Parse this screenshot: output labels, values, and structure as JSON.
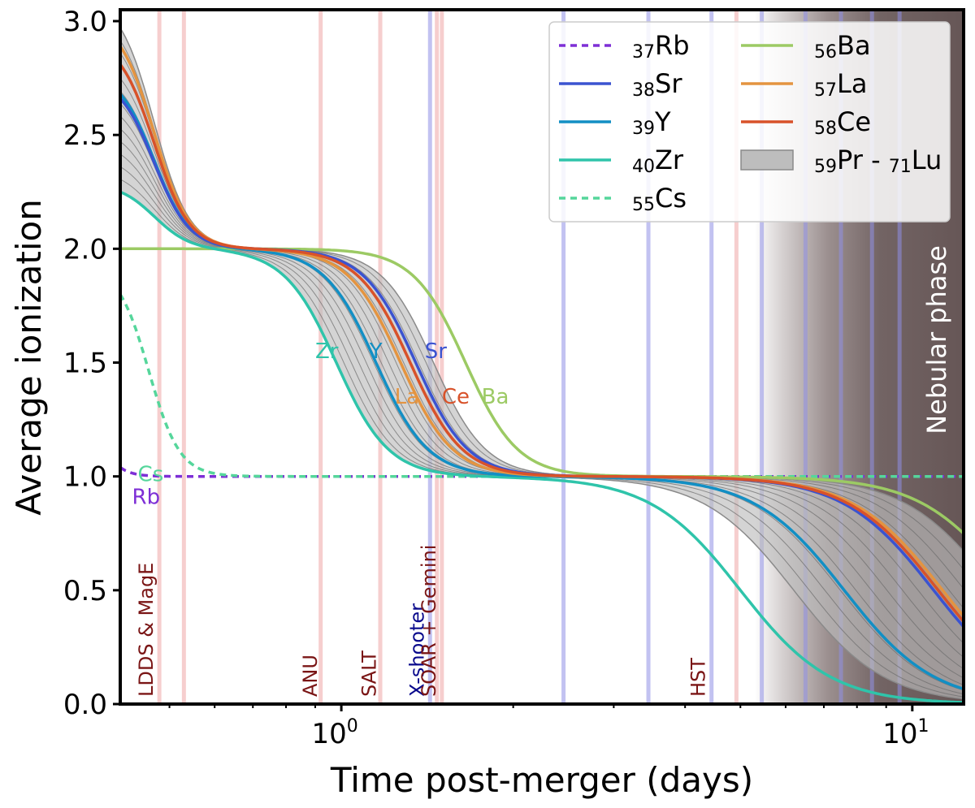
{
  "chart_data": {
    "type": "line",
    "xlabel": "Time post-merger (days)",
    "ylabel": "Average ionization",
    "xscale": "log",
    "xlim": [
      0.41,
      12.3
    ],
    "ylim": [
      0.0,
      3.05
    ],
    "x_ticks": [
      {
        "value": 1,
        "base": "10",
        "exp": "0"
      },
      {
        "value": 10,
        "base": "10",
        "exp": "1"
      }
    ],
    "y_ticks": [
      "0.0",
      "0.5",
      "1.0",
      "1.5",
      "2.0",
      "2.5",
      "3.0"
    ],
    "grid": false,
    "legend": {
      "placement": "top-right",
      "entries": [
        {
          "sub": "37",
          "label": "Rb",
          "color": "#7e2fd6",
          "style": "dashed"
        },
        {
          "sub": "38",
          "label": "Sr",
          "color": "#3b53d0",
          "style": "solid"
        },
        {
          "sub": "39",
          "label": "Y",
          "color": "#128fc4",
          "style": "solid"
        },
        {
          "sub": "40",
          "label": "Zr",
          "color": "#2fc4aa",
          "style": "solid"
        },
        {
          "sub": "55",
          "label": "Cs",
          "color": "#55d69b",
          "style": "dashed"
        },
        {
          "sub": "56",
          "label": "Ba",
          "color": "#9cca64",
          "style": "solid"
        },
        {
          "sub": "57",
          "label": "La",
          "color": "#e49440",
          "style": "solid"
        },
        {
          "sub": "58",
          "label": "Ce",
          "color": "#d8522a",
          "style": "solid"
        },
        {
          "sub": "59",
          "label": "Pr - ",
          "sub2": "71",
          "label2": "Lu",
          "color": "#b0b0b0",
          "style": "band"
        }
      ]
    },
    "series": [
      {
        "name": "Rb",
        "color": "#7e2fd6",
        "style": "dashed",
        "early_start": 1.04,
        "early_decay": 0.47,
        "plateau": 1.0
      },
      {
        "name": "Cs",
        "color": "#55d69b",
        "style": "dashed",
        "early_start": 1.8,
        "early_mid": 0.46,
        "plateau": 1.0
      },
      {
        "name": "Ba",
        "color": "#9cca64",
        "style": "solid",
        "early_start": 2.0,
        "t_2to1": 1.65,
        "t_1to0": 15.0
      },
      {
        "name": "Zr",
        "color": "#2fc4aa",
        "style": "solid",
        "early_start": 2.25,
        "t_2to1": 0.98,
        "t_1to0": 5.0
      },
      {
        "name": "Y",
        "color": "#128fc4",
        "style": "solid",
        "early_start": 2.68,
        "t_2to1": 1.15,
        "t_1to0": 7.6
      },
      {
        "name": "Sr",
        "color": "#3b53d0",
        "style": "solid",
        "early_start": 2.66,
        "t_2to1": 1.35,
        "t_1to0": 10.9
      },
      {
        "name": "La",
        "color": "#e49440",
        "style": "solid",
        "early_start": 2.89,
        "t_2to1": 1.27,
        "t_1to0": 11.3
      },
      {
        "name": "Ce",
        "color": "#d8522a",
        "style": "solid",
        "early_start": 2.81,
        "t_2to1": 1.32,
        "t_1to0": 11.1
      }
    ],
    "band": {
      "name": "Pr - Lu",
      "upper_start": 2.97,
      "lower_start": 2.25,
      "upper_t_2to1": 1.45,
      "lower_t_2to1": 0.98,
      "upper_t_1to0": 14.0,
      "lower_t_1to0": 6.2
    },
    "observations": [
      {
        "label": "LDDS & MagE",
        "t": 0.48,
        "color": "#7a1515",
        "lines": [
          0.48,
          0.53
        ]
      },
      {
        "label": "ANU",
        "t": 0.93,
        "color": "#7a1515",
        "lines": [
          0.92
        ]
      },
      {
        "label": "SALT",
        "t": 1.18,
        "color": "#7a1515",
        "lines": [
          1.17
        ]
      },
      {
        "label": "X-shooter",
        "t": 1.43,
        "color": "#0a0a8c",
        "lines": [
          1.43,
          2.45,
          3.45,
          4.45,
          5.45,
          6.5,
          7.5,
          8.5,
          9.5
        ]
      },
      {
        "label": "SOAR + Gemini",
        "t": 1.5,
        "color": "#7a1515",
        "lines": [
          1.47,
          1.5
        ]
      },
      {
        "label": "HST",
        "t": 4.45,
        "color": "#7a1515",
        "lines": [
          4.92
        ]
      }
    ],
    "curve_labels": [
      {
        "text": "Zr",
        "x": 0.9,
        "y": 1.52,
        "color": "#2fc4aa"
      },
      {
        "text": "Y",
        "x": 1.12,
        "y": 1.52,
        "color": "#128fc4"
      },
      {
        "text": "Sr",
        "x": 1.4,
        "y": 1.52,
        "color": "#3b53d0"
      },
      {
        "text": "La",
        "x": 1.24,
        "y": 1.32,
        "color": "#e49440"
      },
      {
        "text": "Ce",
        "x": 1.5,
        "y": 1.32,
        "color": "#d8522a"
      },
      {
        "text": "Ba",
        "x": 1.76,
        "y": 1.32,
        "color": "#9cca64"
      },
      {
        "text": "Cs",
        "x": 0.44,
        "y": 0.98,
        "color": "#55d69b"
      },
      {
        "text": "Rb",
        "x": 0.43,
        "y": 0.88,
        "color": "#7e2fd6"
      }
    ],
    "annotations": [
      {
        "text": "Nebular phase",
        "x": 11.0,
        "y": 1.6,
        "color": "#ffffff",
        "rotation": -90
      }
    ],
    "nebular_phase_start": 5.3
  }
}
